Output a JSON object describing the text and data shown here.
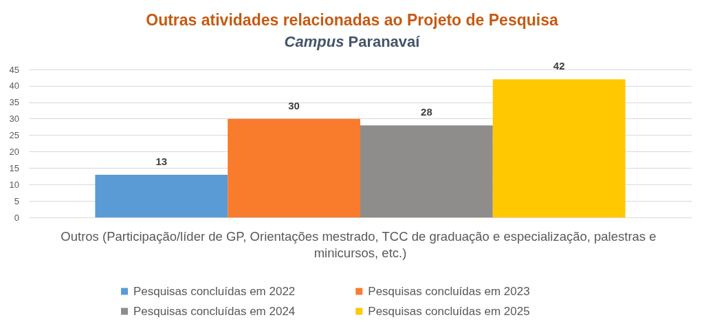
{
  "chart_data": {
    "type": "bar",
    "title": "Outras atividades relacionadas ao Projeto de Pesquisa",
    "subtitle": "Campus Paranavaí",
    "categories": [
      "Outros (Participação/líder de GP, Orientações mestrado, TCC de graduação e especialização, palestras e minicursos, etc.)"
    ],
    "series": [
      {
        "name": "Pesquisas concluídas em 2022",
        "color": "#5b9bd5",
        "values": [
          13
        ]
      },
      {
        "name": "Pesquisas concluídas em 2023",
        "color": "#f97b2c",
        "values": [
          30
        ]
      },
      {
        "name": "Pesquisas concluídas em 2024",
        "color": "#8f8c8c",
        "values": [
          28
        ]
      },
      {
        "name": "Pesquisas concluídas em 2025",
        "color": "#ffc800",
        "values": [
          42
        ]
      }
    ],
    "ylim": [
      0,
      45
    ],
    "yticks": [
      0,
      5,
      10,
      15,
      20,
      25,
      30,
      35,
      40,
      45
    ],
    "grid": "y",
    "legend": "bottom",
    "data_labels": true
  }
}
